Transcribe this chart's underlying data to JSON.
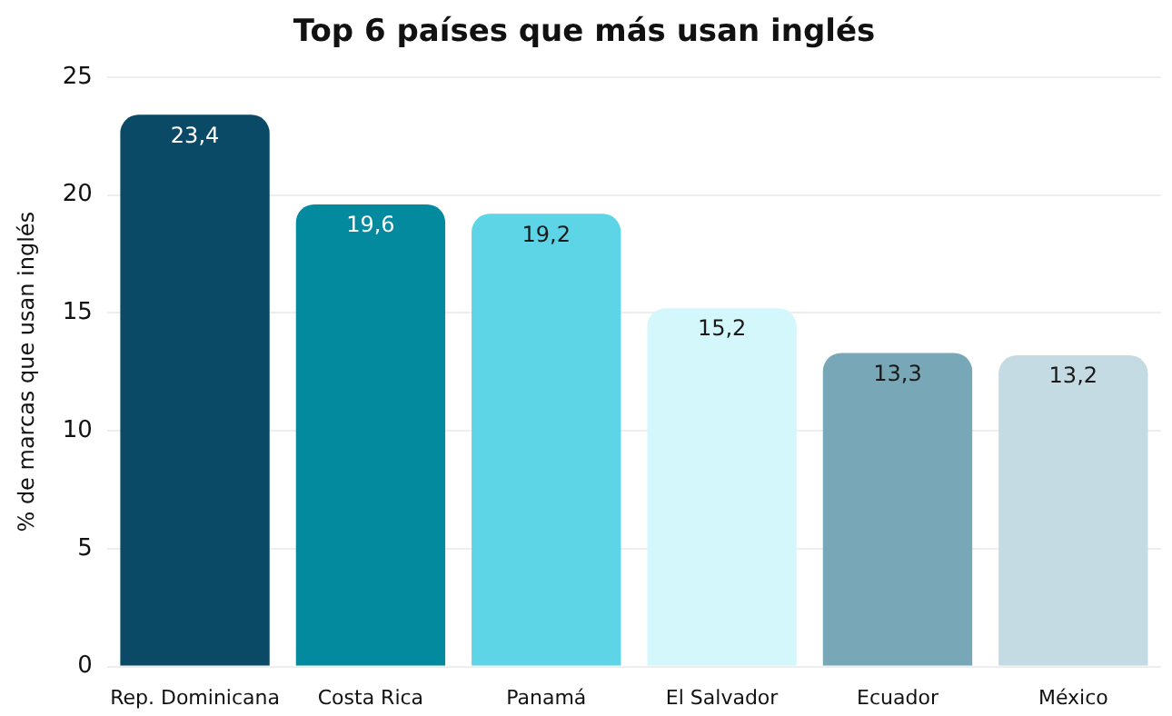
{
  "chart_data": {
    "type": "bar",
    "title": "Top 6 países que más usan inglés",
    "ylabel": "% de marcas que usan inglés",
    "categories": [
      "Rep. Dominicana",
      "Costa Rica",
      "Panamá",
      "El Salvador",
      "Ecuador",
      "México"
    ],
    "values": [
      23.4,
      19.6,
      19.2,
      15.2,
      13.3,
      13.2
    ],
    "colors": [
      "#0a4a66",
      "#048a9e",
      "#5dd5e6",
      "#d4f7fc",
      "#78a8b8",
      "#c5dbe3"
    ],
    "value_labels": [
      "23,4",
      "19,6",
      "19,2",
      "15,2",
      "13,3",
      "13,2"
    ],
    "ylim": [
      0,
      25
    ],
    "yticks": [
      0,
      5,
      10,
      15,
      20,
      25
    ],
    "grid": "y",
    "legend": false
  }
}
